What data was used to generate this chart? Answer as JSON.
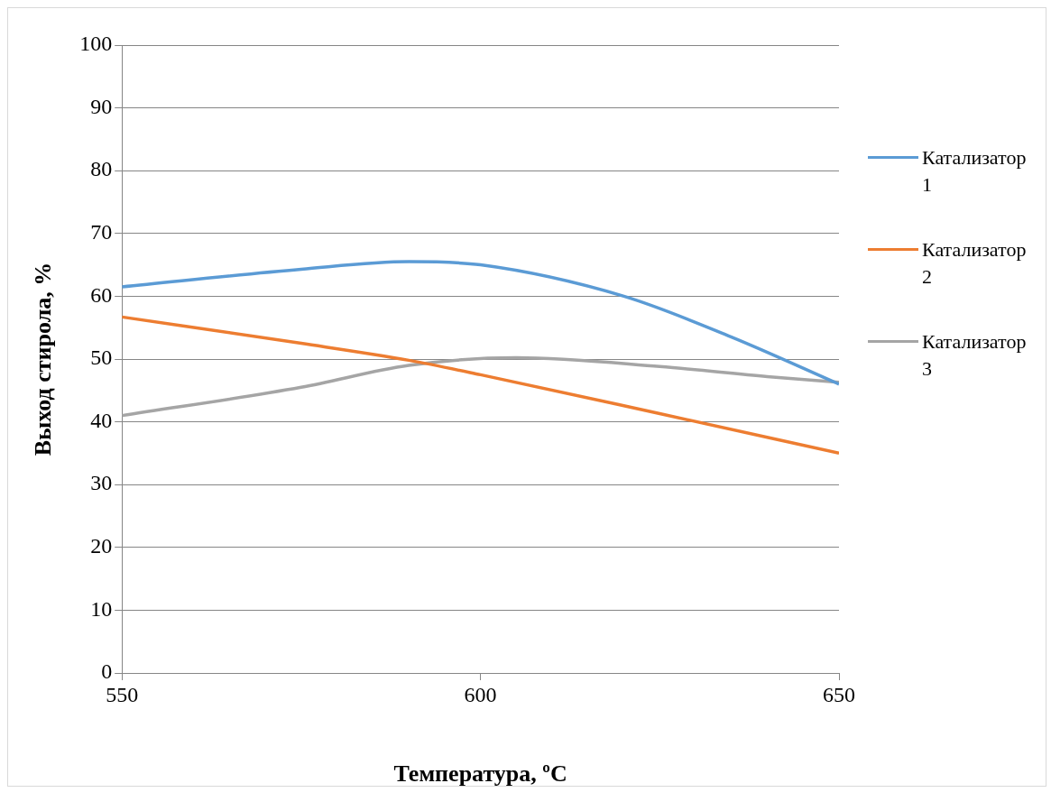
{
  "chart_data": {
    "type": "line",
    "xlabel": "Температура, ºC",
    "ylabel": "Выход стирола, %",
    "xlim": [
      550,
      650
    ],
    "xticks": [
      550,
      600,
      650
    ],
    "ylim": [
      0,
      100
    ],
    "yticks": [
      0,
      10,
      20,
      30,
      40,
      50,
      60,
      70,
      80,
      90,
      100
    ],
    "grid": "y",
    "legend": "right",
    "marker": "none",
    "line_style": "solid",
    "series": [
      {
        "name": "Катализатор 1",
        "color": "#5b9bd5",
        "x": [
          550,
          575,
          590,
          600,
          620,
          635,
          650
        ],
        "values": [
          61.5,
          64.3,
          65.5,
          65,
          60,
          53.5,
          46
        ]
      },
      {
        "name": "Катализатор 2",
        "color": "#ed7d31",
        "x": [
          550,
          575,
          590,
          600,
          625,
          650
        ],
        "values": [
          56.7,
          52.5,
          49.8,
          47.5,
          41.3,
          35
        ]
      },
      {
        "name": "Катализатор 3",
        "color": "#a5a5a5",
        "x": [
          550,
          575,
          590,
          605,
          625,
          640,
          650
        ],
        "values": [
          41,
          45.5,
          49,
          50.2,
          48.8,
          47.2,
          46.3
        ]
      }
    ]
  }
}
